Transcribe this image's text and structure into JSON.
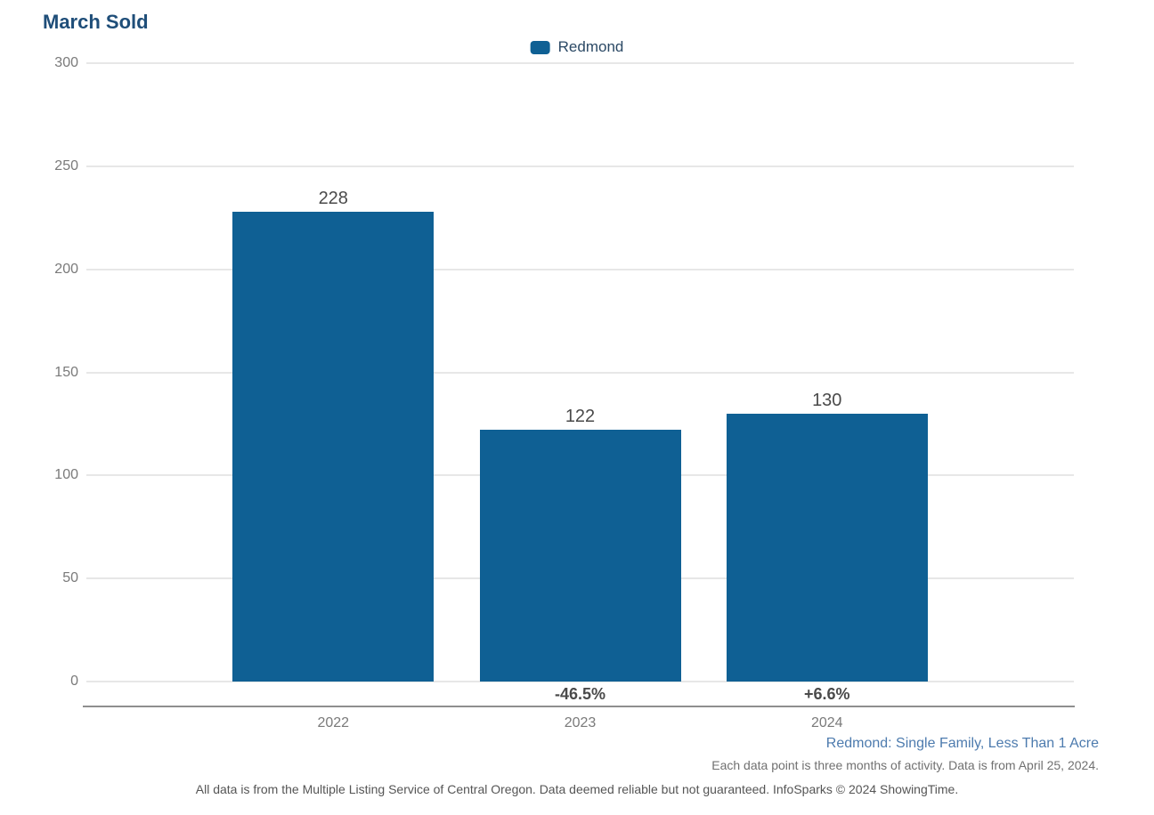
{
  "title": "March Sold",
  "legend": {
    "label": "Redmond"
  },
  "chart_data": {
    "type": "bar",
    "title": "March Sold",
    "categories": [
      "2022",
      "2023",
      "2024"
    ],
    "series": [
      {
        "name": "Redmond",
        "values": [
          228,
          122,
          130
        ],
        "color": "#0F6094"
      }
    ],
    "value_labels": [
      "228",
      "122",
      "130"
    ],
    "change_labels": [
      "",
      "-46.5%",
      "+6.6%"
    ],
    "xlabel": "",
    "ylabel": "",
    "ylim": [
      0,
      300
    ],
    "yticks": [
      0,
      50,
      100,
      150,
      200,
      250,
      300
    ],
    "grid": true,
    "legend_position": "top-center"
  },
  "footnotes": {
    "filter": "Redmond: Single Family, Less Than 1 Acre",
    "data_note": "Each data point is three months of activity. Data is from April 25, 2024.",
    "disclaimer": "All data is from the Multiple Listing Service of Central Oregon. Data deemed reliable but not guaranteed. InfoSparks © 2024 ShowingTime."
  },
  "colors": {
    "bar": "#0F6094",
    "title_text": "#1F4E79",
    "legend_text": "#2B4965",
    "filter_text": "#4D7BAE",
    "tick_text": "#7A7A7A",
    "value_text": "#4A4A4A",
    "pct_text": "#4A4A4A",
    "gridline": "#E7E7E7",
    "axis_line": "#8F8F8F",
    "note_text": "#707070",
    "disclaimer_text": "#555555"
  }
}
